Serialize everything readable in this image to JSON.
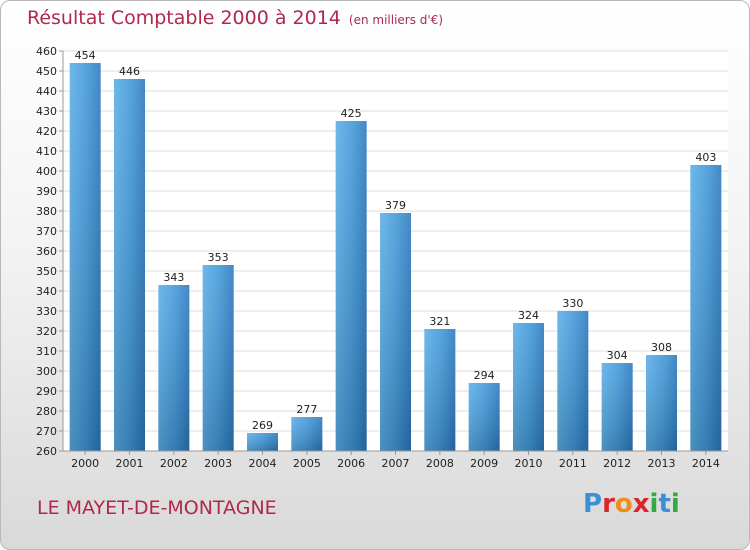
{
  "title": "Résultat Comptable 2000 à 2014",
  "unit": "(en milliers d'€)",
  "commune": "LE MAYET-DE-MONTAGNE",
  "logo": {
    "text": "Proxiti",
    "colors": [
      "#3b8fd6",
      "#d9262a",
      "#f08c1a",
      "#33a843"
    ]
  },
  "colors": {
    "bar": "#3a92d4",
    "title": "#b0294d"
  },
  "chart_data": {
    "type": "bar",
    "title": "Résultat Comptable 2000 à 2014",
    "subtitle": "(en milliers d'€)",
    "categories": [
      "2000",
      "2001",
      "2002",
      "2003",
      "2004",
      "2005",
      "2006",
      "2007",
      "2008",
      "2009",
      "2010",
      "2011",
      "2012",
      "2013",
      "2014"
    ],
    "values": [
      454,
      446,
      343,
      353,
      269,
      277,
      425,
      379,
      321,
      294,
      324,
      330,
      304,
      308,
      403
    ],
    "ylim": [
      260,
      460
    ],
    "yticks": [
      260,
      270,
      280,
      290,
      300,
      310,
      320,
      330,
      340,
      350,
      360,
      370,
      380,
      390,
      400,
      410,
      420,
      430,
      440,
      450,
      460
    ],
    "grid": true,
    "data_labels": true
  }
}
